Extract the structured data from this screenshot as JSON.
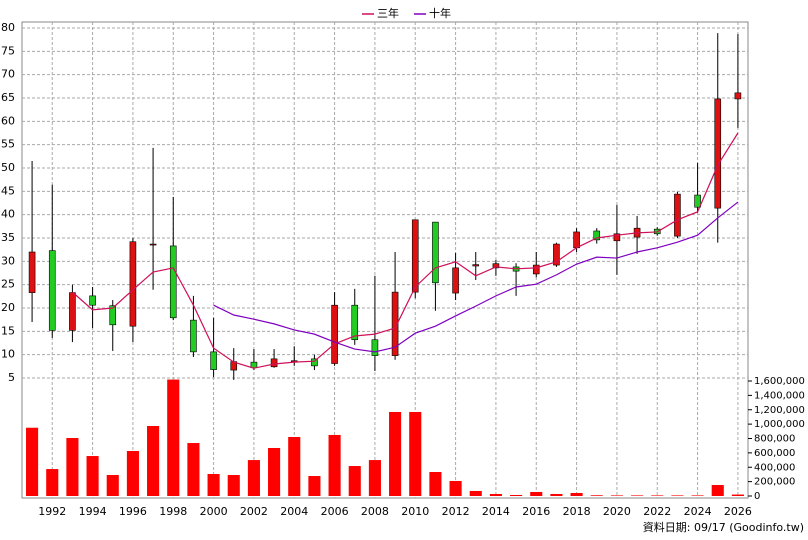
{
  "chart_data": {
    "type": "candlestick",
    "x": [
      1991,
      1992,
      1993,
      1994,
      1995,
      1996,
      1997,
      1998,
      1999,
      2000,
      2001,
      2002,
      2003,
      2004,
      2005,
      2006,
      2007,
      2008,
      2009,
      2010,
      2011,
      2012,
      2013,
      2014,
      2015,
      2016,
      2017,
      2018,
      2019,
      2020,
      2021,
      2022,
      2023,
      2024,
      2025,
      2026
    ],
    "open": [
      23.3,
      32.3,
      15.2,
      22.6,
      20.5,
      16.1,
      33.5,
      33.3,
      17.4,
      10.6,
      6.7,
      8.4,
      7.4,
      8.5,
      9.1,
      8.1,
      20.6,
      13.2,
      9.8,
      23.4,
      38.4,
      23.2,
      29.0,
      28.6,
      28.8,
      27.3,
      29.2,
      32.9,
      36.5,
      34.4,
      35.2,
      36.9,
      35.4,
      44.2,
      41.4,
      64.8
    ],
    "high": [
      51.5,
      46.4,
      25.0,
      24.5,
      21.7,
      35.0,
      54.3,
      43.8,
      22.6,
      17.9,
      11.4,
      11.2,
      11.2,
      11.8,
      10.0,
      23.4,
      24.1,
      26.9,
      32.0,
      38.9,
      38.4,
      31.8,
      32.0,
      30.3,
      29.6,
      32.0,
      34.0,
      37.1,
      37.1,
      42.1,
      39.7,
      37.3,
      44.9,
      51.1,
      78.9,
      78.7
    ],
    "low": [
      17.0,
      13.6,
      12.7,
      15.7,
      10.8,
      12.7,
      23.9,
      17.4,
      9.5,
      5.2,
      4.6,
      6.7,
      7.2,
      7.6,
      6.7,
      7.6,
      12.1,
      6.5,
      8.9,
      22.1,
      19.4,
      21.7,
      26.0,
      26.9,
      22.6,
      26.6,
      28.8,
      32.0,
      33.8,
      27.1,
      31.6,
      35.5,
      35.0,
      40.4,
      34.0,
      58.6
    ],
    "close": [
      32.0,
      15.2,
      23.3,
      20.6,
      16.4,
      34.2,
      33.7,
      17.9,
      10.6,
      6.8,
      8.5,
      7.2,
      9.1,
      8.7,
      7.6,
      20.6,
      13.2,
      9.8,
      23.4,
      38.9,
      25.4,
      28.6,
      29.3,
      29.5,
      27.9,
      29.2,
      33.7,
      36.3,
      34.6,
      35.9,
      37.1,
      35.9,
      44.4,
      41.6,
      64.8,
      66.1
    ],
    "up_color": "#dd1111",
    "down_color": "#22cc22",
    "series": [
      {
        "name": "三年",
        "color": "#d0105a",
        "values": [
          null,
          null,
          23.4,
          19.6,
          20.0,
          23.9,
          27.7,
          28.6,
          20.6,
          11.4,
          8.4,
          7.1,
          8.0,
          8.4,
          8.6,
          12.3,
          14.0,
          14.4,
          15.7,
          24.5,
          28.6,
          29.9,
          26.9,
          28.8,
          28.4,
          28.6,
          29.9,
          32.9,
          35.0,
          35.6,
          36.1,
          36.3,
          38.9,
          40.6,
          50.6,
          57.5
        ]
      },
      {
        "name": "十年",
        "color": "#8000c0",
        "values": [
          null,
          null,
          null,
          null,
          null,
          null,
          null,
          null,
          null,
          20.6,
          18.5,
          17.6,
          16.6,
          15.3,
          14.4,
          12.7,
          11.2,
          10.6,
          11.6,
          14.6,
          16.1,
          18.3,
          20.4,
          22.6,
          24.5,
          25.1,
          27.1,
          29.4,
          30.9,
          30.7,
          32.0,
          32.9,
          34.1,
          35.6,
          39.3,
          42.7
        ]
      }
    ],
    "volume": [
      950000,
      375000,
      807000,
      556000,
      292000,
      626000,
      974000,
      1620000,
      737000,
      306000,
      292000,
      500000,
      668000,
      821000,
      278000,
      849000,
      417000,
      500000,
      1169000,
      1169000,
      334000,
      209000,
      70000,
      28000,
      14000,
      56000,
      28000,
      42000,
      10000,
      8000,
      8000,
      8000,
      8000,
      8000,
      153000,
      20000
    ],
    "volume_color": "#ff0000",
    "xlim": [
      1990.5,
      2026.5
    ],
    "xticks": [
      1992,
      1994,
      1996,
      1998,
      2000,
      2002,
      2004,
      2006,
      2008,
      2010,
      2012,
      2014,
      2016,
      2018,
      2020,
      2022,
      2024,
      2026
    ],
    "ylim": [
      5,
      80
    ],
    "yticks": [
      5,
      10,
      15,
      20,
      25,
      30,
      35,
      40,
      45,
      50,
      55,
      60,
      65,
      70,
      75,
      80
    ],
    "y2lim": [
      0,
      1600000
    ],
    "y2ticks": [
      {
        "value": 0,
        "label": "0"
      },
      {
        "value": 200000,
        "label": "200,000"
      },
      {
        "value": 400000,
        "label": "400,000"
      },
      {
        "value": 600000,
        "label": "600,000"
      },
      {
        "value": 800000,
        "label": "800,000"
      },
      {
        "value": 1000000,
        "label": "1,000,000"
      },
      {
        "value": 1200000,
        "label": "1,200,000"
      },
      {
        "value": 1400000,
        "label": "1,400,000"
      },
      {
        "value": 1600000,
        "label": "1,600,000"
      }
    ],
    "grid": true,
    "source": "資料日期: 09/17 (Goodinfo.tw)"
  }
}
